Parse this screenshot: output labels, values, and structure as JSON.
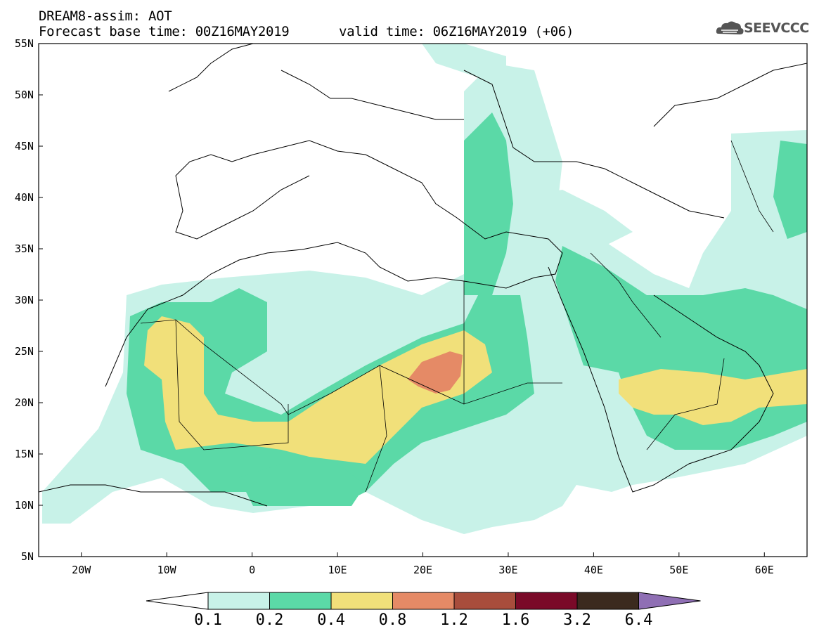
{
  "header": {
    "line1": "DREAM8-assim: AOT",
    "line2": "Forecast base time: 00Z16MAY2019",
    "line3": "valid time: 06Z16MAY2019 (+06)"
  },
  "logo": {
    "text": "SEEVCCC",
    "icon": "cloud-icon"
  },
  "map": {
    "lat_labels": [
      "55N",
      "50N",
      "45N",
      "40N",
      "35N",
      "30N",
      "25N",
      "20N",
      "15N",
      "10N",
      "5N"
    ],
    "lon_labels": [
      "20W",
      "10W",
      "0",
      "10E",
      "20E",
      "30E",
      "40E",
      "50E",
      "60E"
    ],
    "lat_range": [
      5,
      55
    ],
    "lon_range": [
      -25,
      65
    ]
  },
  "colorbar": {
    "labels": [
      "0.1",
      "0.2",
      "0.4",
      "0.8",
      "1.2",
      "1.6",
      "3.2",
      "6.4"
    ],
    "colors": [
      "#c8f2e8",
      "#5bd9a7",
      "#f1e07a",
      "#e58a66",
      "#a84d3c",
      "#7a0a28",
      "#3b2a1e",
      "#8f6fb4"
    ]
  }
}
